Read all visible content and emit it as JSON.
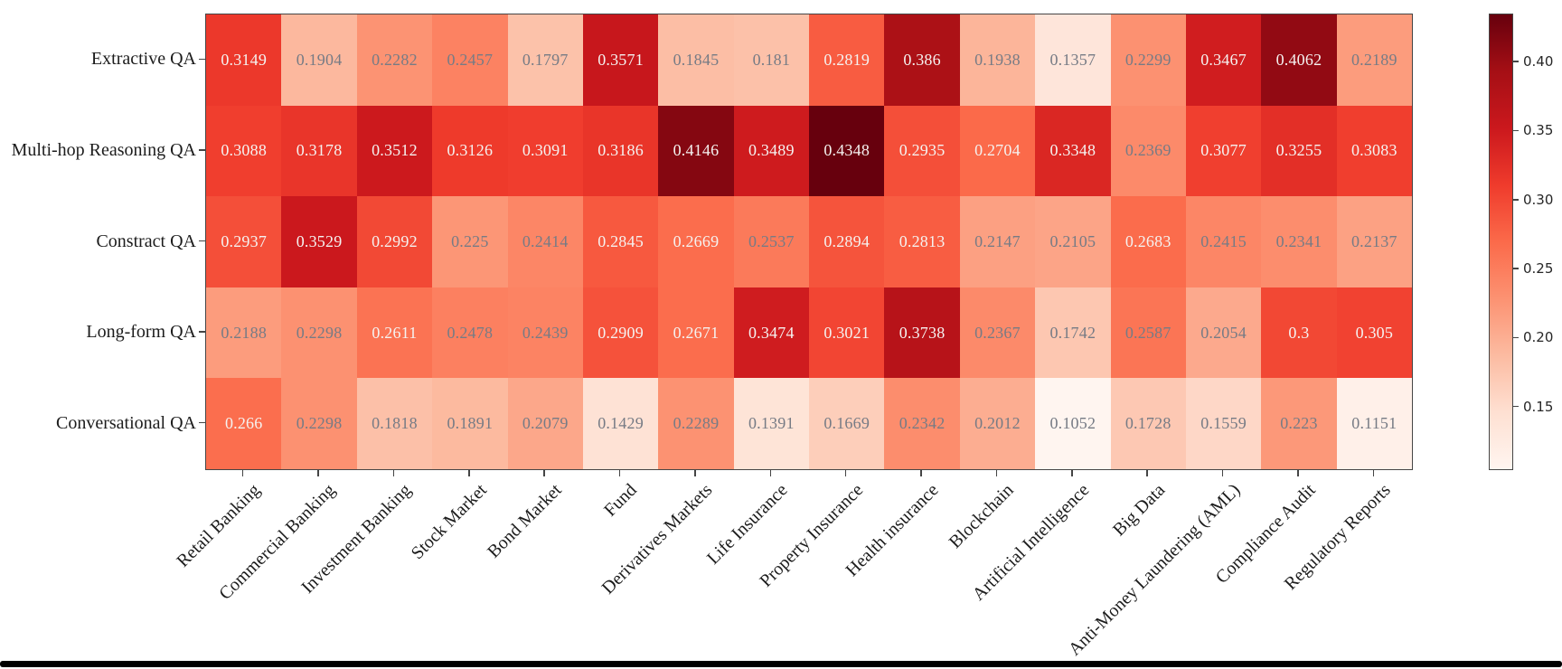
{
  "chart_data": {
    "type": "heatmap",
    "rows": [
      "Extractive QA",
      "Multi-hop Reasoning QA",
      "Constract QA",
      "Long-form QA",
      "Conversational QA"
    ],
    "columns": [
      "Retail Banking",
      "Commercial Banking",
      "Investment Banking",
      "Stock Market",
      "Bond Market",
      "Fund",
      "Derivatives Markets",
      "Life Insurance",
      "Property Insurance",
      "Health insurance",
      "Blockchain",
      "Artificial Intelligence",
      "Big Data",
      "Anti-Money Laundering (AML)",
      "Compliance Audit",
      "Regulatory Reports"
    ],
    "values": [
      [
        0.3149,
        0.1904,
        0.2282,
        0.2457,
        0.1797,
        0.3571,
        0.1845,
        0.181,
        0.2819,
        0.386,
        0.1938,
        0.1357,
        0.2299,
        0.3467,
        0.4062,
        0.2189
      ],
      [
        0.3088,
        0.3178,
        0.3512,
        0.3126,
        0.3091,
        0.3186,
        0.4146,
        0.3489,
        0.4348,
        0.2935,
        0.2704,
        0.3348,
        0.2369,
        0.3077,
        0.3255,
        0.3083
      ],
      [
        0.2937,
        0.3529,
        0.2992,
        0.225,
        0.2414,
        0.2845,
        0.2669,
        0.2537,
        0.2894,
        0.2813,
        0.2147,
        0.2105,
        0.2683,
        0.2415,
        0.2341,
        0.2137
      ],
      [
        0.2188,
        0.2298,
        0.2611,
        0.2478,
        0.2439,
        0.2909,
        0.2671,
        0.3474,
        0.3021,
        0.3738,
        0.2367,
        0.1742,
        0.2587,
        0.2054,
        0.3,
        0.305
      ],
      [
        0.266,
        0.2298,
        0.1818,
        0.1891,
        0.2079,
        0.1429,
        0.2289,
        0.1391,
        0.1669,
        0.2342,
        0.2012,
        0.1052,
        0.1728,
        0.1559,
        0.223,
        0.1151
      ]
    ],
    "vmin": 0.1052,
    "vmax": 0.4348,
    "colormap": "Reds",
    "colormap_stops": [
      {
        "pos": 0.0,
        "hex": "#fff5f0"
      },
      {
        "pos": 0.125,
        "hex": "#fee0d2"
      },
      {
        "pos": 0.25,
        "hex": "#fcbba1"
      },
      {
        "pos": 0.375,
        "hex": "#fc9272"
      },
      {
        "pos": 0.5,
        "hex": "#fb6a4a"
      },
      {
        "pos": 0.625,
        "hex": "#ef3b2c"
      },
      {
        "pos": 0.75,
        "hex": "#cb181d"
      },
      {
        "pos": 0.875,
        "hex": "#a50f15"
      },
      {
        "pos": 1.0,
        "hex": "#67000d"
      }
    ],
    "colorbar": {
      "tick_labels": [
        "0.40",
        "0.35",
        "0.30",
        "0.25",
        "0.20",
        "0.15"
      ],
      "tick_values": [
        0.4,
        0.35,
        0.3,
        0.25,
        0.2,
        0.15
      ]
    },
    "style": {
      "annot_text_light": "#f5f2f0",
      "annot_text_dark": "#767b85",
      "annot_light_threshold": 0.47,
      "spine_color": "#454545"
    },
    "title": "",
    "xlabel": "",
    "ylabel": "",
    "legend_position": "right-colorbar",
    "grid": false
  }
}
